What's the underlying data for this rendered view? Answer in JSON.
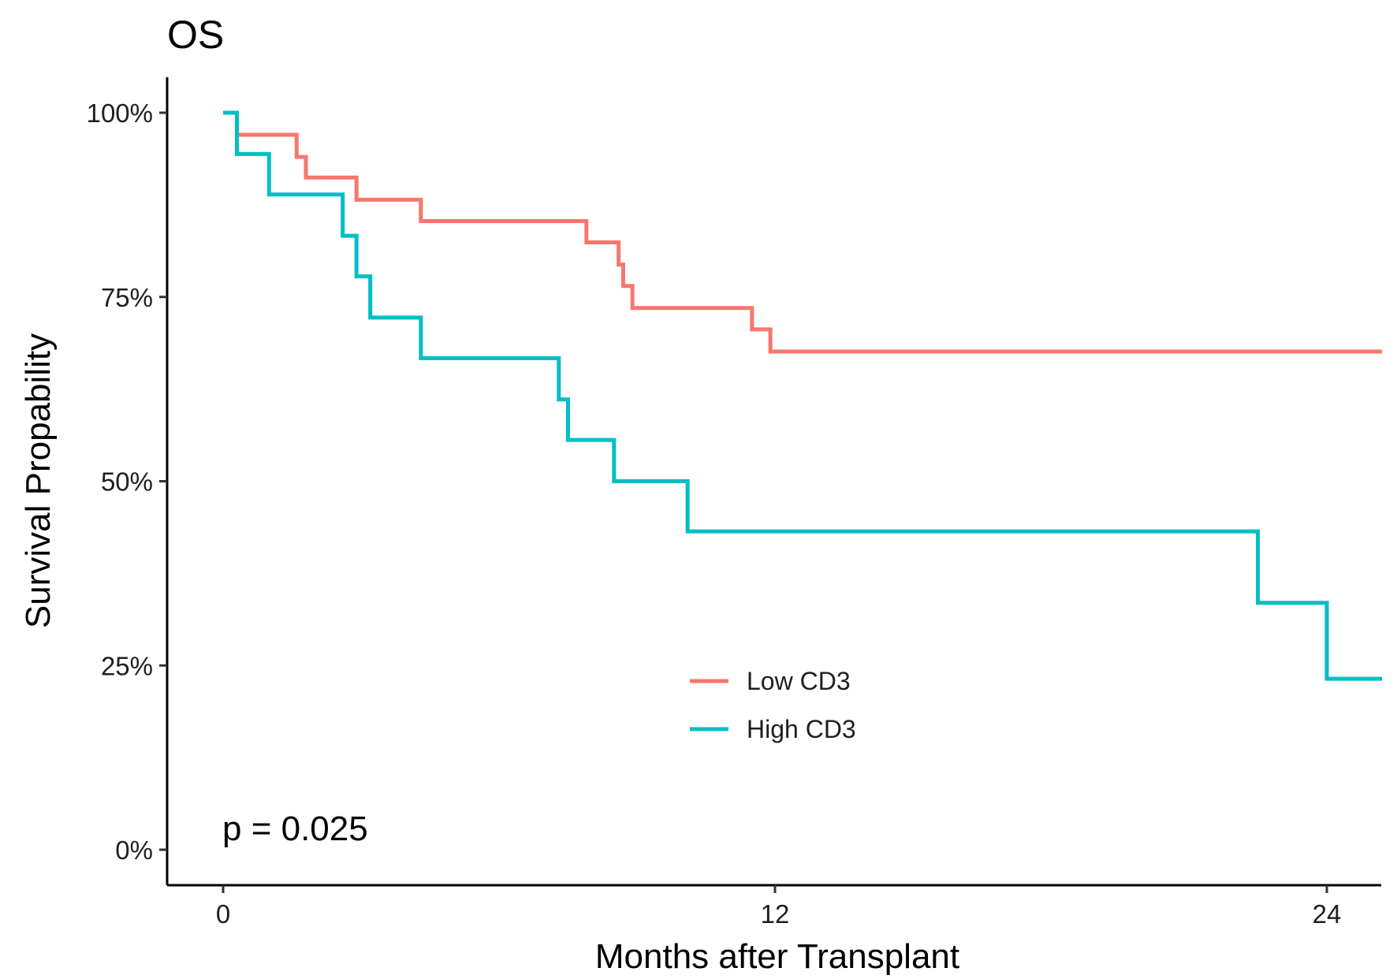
{
  "chart_data": {
    "type": "line",
    "step": true,
    "title": "OS",
    "xlabel": "Months after Transplant",
    "ylabel": "Survival Propability",
    "xlim": [
      0,
      25.2
    ],
    "ylim": [
      0,
      1
    ],
    "x_ticks": [
      0,
      12,
      24
    ],
    "x_tick_labels": [
      "0",
      "12",
      "24"
    ],
    "y_ticks": [
      0,
      0.25,
      0.5,
      0.75,
      1
    ],
    "y_tick_labels": [
      "0%",
      "25%",
      "50%",
      "75%",
      "100%"
    ],
    "grid": false,
    "legend_position": "inside-lower-center",
    "annotation": "p = 0.025",
    "series": [
      {
        "name": "Low CD3",
        "color": "#F8766D",
        "points": [
          [
            0,
            1.0
          ],
          [
            0.3,
            0.97
          ],
          [
            1.6,
            0.94
          ],
          [
            1.8,
            0.912
          ],
          [
            2.9,
            0.882
          ],
          [
            4.3,
            0.853
          ],
          [
            7.9,
            0.824
          ],
          [
            8.6,
            0.794
          ],
          [
            8.7,
            0.765
          ],
          [
            8.9,
            0.735
          ],
          [
            11.5,
            0.706
          ],
          [
            11.9,
            0.676
          ],
          [
            25.2,
            0.676
          ]
        ]
      },
      {
        "name": "High CD3",
        "color": "#00BFC4",
        "points": [
          [
            0,
            1.0
          ],
          [
            0.3,
            0.944
          ],
          [
            1.0,
            0.889
          ],
          [
            2.6,
            0.833
          ],
          [
            2.9,
            0.778
          ],
          [
            3.2,
            0.722
          ],
          [
            4.3,
            0.667
          ],
          [
            7.3,
            0.611
          ],
          [
            7.5,
            0.556
          ],
          [
            8.5,
            0.5
          ],
          [
            10.1,
            0.432
          ],
          [
            22.5,
            0.335
          ],
          [
            24.0,
            0.232
          ],
          [
            25.2,
            0.232
          ]
        ]
      }
    ]
  }
}
